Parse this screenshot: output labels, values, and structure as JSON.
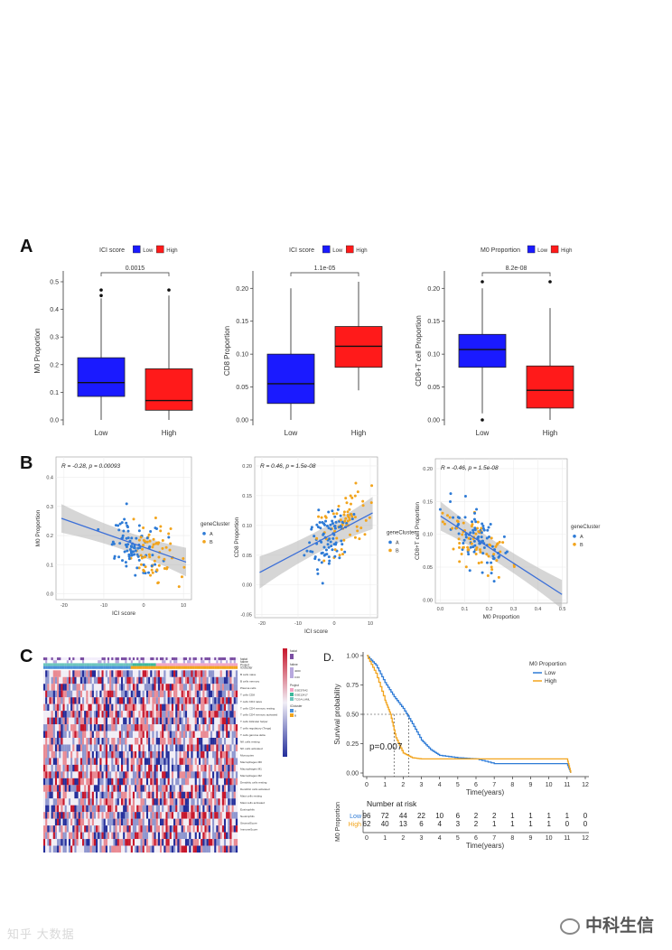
{
  "panels": {
    "a": "A",
    "b": "B",
    "c": "C",
    "d": "D."
  },
  "colors": {
    "low": "#1a1aff",
    "high": "#ff1a1a",
    "geneA": "#2e7bd6",
    "geneB": "#f2a41c",
    "km_low": "#2e7bd6",
    "km_high": "#f2a41c"
  },
  "boxplots": [
    {
      "legend_title": "ICI score",
      "legend_low": "Low",
      "legend_high": "High",
      "ylabel": "M0 Proportion",
      "pvalue": "0.0015",
      "yticks": [
        "0.5",
        "0.4",
        "0.3",
        "0.2",
        "0.1",
        "0.0"
      ],
      "xticks": [
        "Low",
        "High"
      ]
    },
    {
      "legend_title": "ICI score",
      "legend_low": "Low",
      "legend_high": "High",
      "ylabel": "CD8 Proportion",
      "pvalue": "1.1e-05",
      "yticks": [
        "0.20",
        "0.15",
        "0.10",
        "0.05",
        "0.00"
      ],
      "xticks": [
        "Low",
        "High"
      ]
    },
    {
      "legend_title": "M0 Proportion",
      "legend_low": "Low",
      "legend_high": "High",
      "ylabel": "CD8+T cell Proportion",
      "pvalue": "8.2e-08",
      "yticks": [
        "0.20",
        "0.15",
        "0.10",
        "0.05",
        "0.00"
      ],
      "xticks": [
        "Low",
        "High"
      ]
    }
  ],
  "chart_data": [
    {
      "type": "box",
      "title": "",
      "xlabel": "",
      "ylabel": "M0 Proportion",
      "ylim": [
        0,
        0.5
      ],
      "categories": [
        "Low",
        "High"
      ],
      "boxes": [
        {
          "min": 0.0,
          "q1": 0.085,
          "median": 0.135,
          "q3": 0.225,
          "max": 0.44,
          "outliers": [
            0.45,
            0.47
          ]
        },
        {
          "min": 0.0,
          "q1": 0.035,
          "median": 0.07,
          "q3": 0.185,
          "max": 0.45,
          "outliers": [
            0.47
          ]
        }
      ],
      "annotation": "0.0015"
    },
    {
      "type": "box",
      "title": "",
      "xlabel": "",
      "ylabel": "CD8 Proportion",
      "ylim": [
        0,
        0.21
      ],
      "categories": [
        "Low",
        "High"
      ],
      "boxes": [
        {
          "min": 0.0,
          "q1": 0.025,
          "median": 0.055,
          "q3": 0.1,
          "max": 0.2,
          "outliers": []
        },
        {
          "min": 0.045,
          "q1": 0.08,
          "median": 0.112,
          "q3": 0.142,
          "max": 0.21,
          "outliers": []
        }
      ],
      "annotation": "1.1e-05"
    },
    {
      "type": "box",
      "title": "",
      "xlabel": "",
      "ylabel": "CD8+T cell Proportion",
      "ylim": [
        0,
        0.21
      ],
      "categories": [
        "Low",
        "High"
      ],
      "boxes": [
        {
          "min": 0.01,
          "q1": 0.08,
          "median": 0.107,
          "q3": 0.13,
          "max": 0.2,
          "outliers": [
            0.21,
            0.0
          ]
        },
        {
          "min": 0.0,
          "q1": 0.018,
          "median": 0.045,
          "q3": 0.082,
          "max": 0.17,
          "outliers": [
            0.21
          ]
        }
      ],
      "annotation": "8.2e-08"
    },
    {
      "type": "scatter",
      "annotation": "R = -0.28, p = 0.00093",
      "xlabel": "ICI score",
      "ylabel": "M0 Proportion",
      "xlim": [
        -22,
        12
      ],
      "ylim": [
        -0.02,
        0.47
      ],
      "xticks": [
        "-20",
        "-10",
        "0",
        "10"
      ],
      "yticks": [
        "0.4",
        "0.3",
        "0.2",
        "0.1",
        "0.0"
      ],
      "legend_title": "geneCluster",
      "legend": [
        "A",
        "B"
      ],
      "fit": {
        "intercept": 0.16,
        "slope": -0.0048
      }
    },
    {
      "type": "scatter",
      "annotation": "R = 0.46, p = 1.5e-08",
      "xlabel": "ICI score",
      "ylabel": "CD8 Proportion",
      "xlim": [
        -22,
        12
      ],
      "ylim": [
        -0.055,
        0.215
      ],
      "xticks": [
        "-20",
        "-10",
        "0",
        "10"
      ],
      "yticks": [
        "0.20",
        "0.15",
        "0.10",
        "0.05",
        "0.00",
        "-0.05"
      ],
      "legend_title": "geneCluster",
      "legend": [
        "A",
        "B"
      ],
      "fit": {
        "intercept": 0.087,
        "slope": 0.0032
      }
    },
    {
      "type": "scatter",
      "annotation": "R = -0.46, p = 1.5e-08",
      "xlabel": "M0 Proportion",
      "ylabel": "CD8+T cell Proportion",
      "xlim": [
        -0.02,
        0.52
      ],
      "ylim": [
        -0.005,
        0.215
      ],
      "xticks": [
        "0.0",
        "0.1",
        "0.2",
        "0.3",
        "0.4",
        "0.5"
      ],
      "yticks": [
        "0.20",
        "0.15",
        "0.10",
        "0.05",
        "0.00"
      ],
      "legend_title": "geneCluster",
      "legend": [
        "A",
        "B"
      ],
      "fit": {
        "intercept": 0.128,
        "slope": -0.24
      }
    },
    {
      "type": "heatmap",
      "rows": 27,
      "columns": 100,
      "row_labels": [
        "B cells naive",
        "B cells memory",
        "Plasma cells",
        "T cells CD8",
        "T cells CD4 naive",
        "T cells CD4 memory resting",
        "T cells CD4 memory activated",
        "T cells follicular helper",
        "T cells regulatory (Tregs)",
        "T cells gamma delta",
        "NK cells resting",
        "NK cells activated",
        "Monocytes",
        "Macrophages M0",
        "Macrophages M1",
        "Macrophages M2",
        "Dendritic cells resting",
        "Dendritic cells activated",
        "Mast cells resting",
        "Mast cells activated",
        "Eosinophils",
        "Neutrophils",
        "StromalScore",
        "ImmuneScore"
      ],
      "annotation_rows": [
        "fustat",
        "futime",
        "Project",
        "ICIcluster"
      ],
      "legend_labels": [
        "fustat",
        "futime",
        "Project",
        "ICIcluster",
        "A",
        "B"
      ],
      "legend_projects": [
        "GSE37642",
        "GSE12417",
        "TCGA-LAML"
      ],
      "legend_scale": [
        "4000",
        "0.00"
      ]
    },
    {
      "type": "line",
      "title": "",
      "xlabel": "Time(years)",
      "ylabel": "Survival probability",
      "xlim": [
        0,
        12
      ],
      "ylim": [
        0,
        1
      ],
      "xticks": [
        "0",
        "1",
        "2",
        "3",
        "4",
        "5",
        "6",
        "7",
        "8",
        "9",
        "10",
        "11",
        "12"
      ],
      "yticks": [
        "1.00",
        "0.75",
        "0.50",
        "0.25",
        "0.00"
      ],
      "legend_title": "M0 Proportion",
      "legend": [
        "Low",
        "High"
      ],
      "pvalue": "p=0.007",
      "series": [
        {
          "name": "Low",
          "x": [
            0,
            0.5,
            1,
            1.5,
            2,
            2.5,
            3,
            3.5,
            4,
            5,
            6,
            7,
            8,
            9,
            10,
            11,
            11.2
          ],
          "y": [
            1.0,
            0.92,
            0.77,
            0.65,
            0.55,
            0.42,
            0.28,
            0.2,
            0.15,
            0.13,
            0.12,
            0.08,
            0.08,
            0.08,
            0.08,
            0.08,
            0.0
          ]
        },
        {
          "name": "High",
          "x": [
            0,
            0.5,
            1,
            1.3,
            1.6,
            2,
            2.5,
            3,
            4,
            5,
            6,
            8,
            10,
            11,
            11.2
          ],
          "y": [
            1.0,
            0.85,
            0.62,
            0.5,
            0.3,
            0.17,
            0.13,
            0.12,
            0.12,
            0.12,
            0.12,
            0.12,
            0.12,
            0.12,
            0.0
          ]
        }
      ],
      "median_marks": [
        1.5,
        2.3
      ],
      "risk_table": {
        "title": "Number at risk",
        "ylabel": "M0 Proportion",
        "xlabel": "Time(years)",
        "rows": [
          {
            "name": "Low",
            "values": [
              "96",
              "72",
              "44",
              "22",
              "10",
              "6",
              "2",
              "2",
              "1",
              "1",
              "1",
              "1",
              "0"
            ]
          },
          {
            "name": "High",
            "values": [
              "62",
              "40",
              "13",
              "6",
              "4",
              "3",
              "2",
              "1",
              "1",
              "1",
              "1",
              "0",
              "0"
            ]
          }
        ]
      }
    }
  ],
  "watermark": {
    "left": "知乎 大数据",
    "right": "中科生信"
  }
}
